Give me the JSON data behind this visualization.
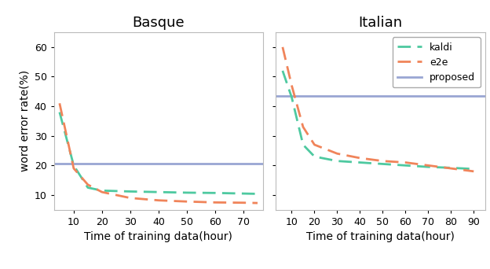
{
  "basque": {
    "title": "Basque",
    "kaldi_x": [
      5,
      10,
      15,
      20,
      30,
      40,
      50,
      60,
      70,
      75
    ],
    "kaldi_y": [
      38,
      20,
      12.5,
      11.5,
      11.2,
      11.0,
      10.8,
      10.7,
      10.5,
      10.4
    ],
    "e2e_x": [
      5,
      10,
      15,
      20,
      30,
      40,
      50,
      60,
      70,
      75
    ],
    "e2e_y": [
      41,
      19,
      13.5,
      11.0,
      9.0,
      8.2,
      7.8,
      7.5,
      7.4,
      7.3
    ],
    "proposed": 20.5,
    "xlim": [
      3,
      77
    ],
    "xticks": [
      10,
      20,
      30,
      40,
      50,
      60,
      70
    ],
    "ylim": [
      5,
      65
    ],
    "yticks": [
      10,
      20,
      30,
      40,
      50,
      60
    ]
  },
  "italian": {
    "title": "Italian",
    "kaldi_x": [
      6,
      10,
      15,
      20,
      30,
      40,
      50,
      60,
      70,
      80,
      90
    ],
    "kaldi_y": [
      52,
      43,
      27,
      23,
      21.5,
      21.0,
      20.5,
      20.0,
      19.5,
      19.2,
      18.8
    ],
    "e2e_x": [
      6,
      10,
      15,
      20,
      30,
      40,
      50,
      60,
      70,
      80,
      90
    ],
    "e2e_y": [
      60,
      47,
      33,
      27,
      24,
      22.5,
      21.5,
      21.0,
      20.0,
      19.0,
      18.0
    ],
    "proposed": 43.5,
    "xlim": [
      3,
      95
    ],
    "xticks": [
      10,
      20,
      30,
      40,
      50,
      60,
      70,
      80,
      90
    ],
    "ylim": [
      5,
      65
    ],
    "yticks": [
      10,
      20,
      30,
      40,
      50,
      60
    ]
  },
  "kaldi_color": "#4ec9a0",
  "e2e_color": "#f0845a",
  "proposed_color": "#8090c8",
  "xlabel": "Time of training data(hour)",
  "ylabel": "word error rate(%)",
  "linewidth": 2.0,
  "proposed_linewidth": 2.0,
  "title_fontsize": 13,
  "label_fontsize": 10,
  "tick_fontsize": 9,
  "legend_fontsize": 9
}
